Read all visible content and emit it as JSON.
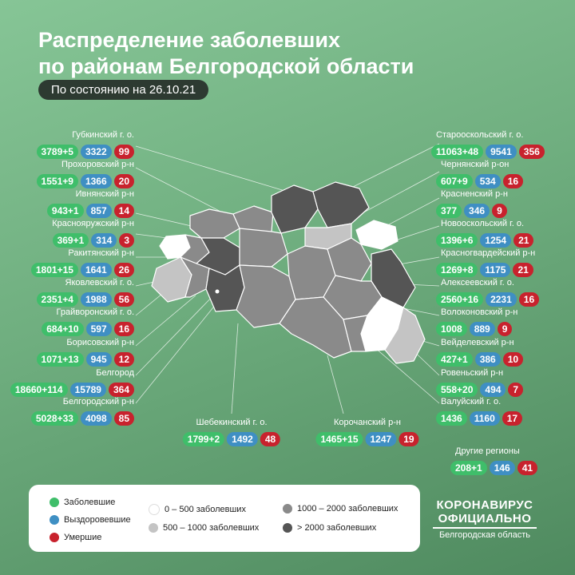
{
  "title_line1": "Распределение заболевших",
  "title_line2": "по районам Белгородской области",
  "date_label": "По состоянию на 26.10.21",
  "colors": {
    "sick": "#3fbe6a",
    "recovered": "#3f8fc3",
    "dead": "#c8222d"
  },
  "districts": [
    {
      "name": "Губкинский г. о.",
      "sick": "3789+5",
      "recovered": "3322",
      "dead": "99"
    },
    {
      "name": "Прохоровский р-н",
      "sick": "1551+9",
      "recovered": "1366",
      "dead": "20"
    },
    {
      "name": "Ивнянский р-н",
      "sick": "943+1",
      "recovered": "857",
      "dead": "14"
    },
    {
      "name": "Краснояружский р-н",
      "sick": "369+1",
      "recovered": "314",
      "dead": "3"
    },
    {
      "name": "Ракитянский р-н",
      "sick": "1801+15",
      "recovered": "1641",
      "dead": "26"
    },
    {
      "name": "Яковлевский г. о.",
      "sick": "2351+4",
      "recovered": "1988",
      "dead": "56"
    },
    {
      "name": "Грайворонский г. о.",
      "sick": "684+10",
      "recovered": "597",
      "dead": "16"
    },
    {
      "name": "Борисовский р-н",
      "sick": "1071+13",
      "recovered": "945",
      "dead": "12"
    },
    {
      "name": "Белгород",
      "sick": "18660+114",
      "recovered": "15789",
      "dead": "364"
    },
    {
      "name": "Белгородский р-н",
      "sick": "5028+33",
      "recovered": "4098",
      "dead": "85"
    },
    {
      "name": "Шебекинский г. о.",
      "sick": "1799+2",
      "recovered": "1492",
      "dead": "48"
    },
    {
      "name": "Корочанский р-н",
      "sick": "1465+15",
      "recovered": "1247",
      "dead": "19"
    },
    {
      "name": "Старооскольский г. о.",
      "sick": "11063+48",
      "recovered": "9541",
      "dead": "356"
    },
    {
      "name": "Чернянский р-он",
      "sick": "607+9",
      "recovered": "534",
      "dead": "16"
    },
    {
      "name": "Красненский р-н",
      "sick": "377",
      "recovered": "346",
      "dead": "9"
    },
    {
      "name": "Новооскольский г. о.",
      "sick": "1396+6",
      "recovered": "1254",
      "dead": "21"
    },
    {
      "name": "Красногвардейский р-н",
      "sick": "1269+8",
      "recovered": "1175",
      "dead": "21"
    },
    {
      "name": "Алексеевский г. о.",
      "sick": "2560+16",
      "recovered": "2231",
      "dead": "16"
    },
    {
      "name": "Волоконовский р-н",
      "sick": "1008",
      "recovered": "889",
      "dead": "9"
    },
    {
      "name": "Вейделевский р-н",
      "sick": "427+1",
      "recovered": "386",
      "dead": "10"
    },
    {
      "name": "Ровеньский р-н",
      "sick": "558+20",
      "recovered": "494",
      "dead": "7"
    },
    {
      "name": "Валуйский г. о.",
      "sick": "1436",
      "recovered": "1160",
      "dead": "17"
    },
    {
      "name": "Другие регионы",
      "sick": "208+1",
      "recovered": "146",
      "dead": "41"
    }
  ],
  "legend": {
    "sick": "Заболевшие",
    "recovered": "Выздоровевшие",
    "dead": "Умершие",
    "scale": [
      {
        "label": "0 – 500 заболевших",
        "color": "#ffffff"
      },
      {
        "label": "500 – 1000 заболевших",
        "color": "#c4c4c4"
      },
      {
        "label": "1000 – 2000 заболевших",
        "color": "#8a8a8a"
      },
      {
        "label": "> 2000 заболевших",
        "color": "#555555"
      }
    ]
  },
  "brand": {
    "line1": "КОРОНАВИРУС",
    "line2": "ОФИЦИАЛЬНО",
    "line3": "Белгородская область"
  }
}
